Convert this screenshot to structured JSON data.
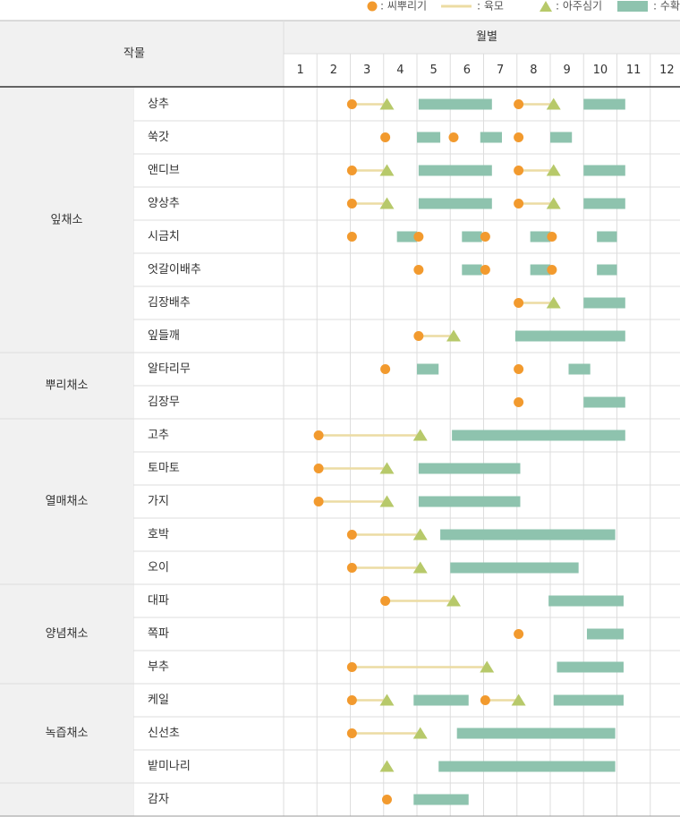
{
  "legend": [
    {
      "mark": "dot",
      "label": ": 씨뿌리기"
    },
    {
      "mark": "line",
      "label": ": 육모"
    },
    {
      "mark": "triangle",
      "label": ": 아주심기"
    },
    {
      "mark": "bar",
      "label": ": 수확"
    }
  ],
  "header": {
    "crop_col": "작물",
    "month_col": "월별"
  },
  "colors": {
    "sowing": "#f29a2e",
    "nursery": "#ecdca3",
    "planting": "#b7c96a",
    "harvest": "#8ec3ae",
    "header_bg": "#f1f1f1",
    "grid": "#dddddd"
  },
  "chart_data": {
    "type": "table",
    "months": [
      "1",
      "2",
      "3",
      "4",
      "5",
      "6",
      "7",
      "8",
      "9",
      "10",
      "11",
      "12"
    ],
    "groups": [
      {
        "name": "잎채소",
        "crops": [
          {
            "name": "상추",
            "sow": [
              3.05,
              8.05
            ],
            "nursery": [
              [
                3.05,
                4.1
              ],
              [
                8.05,
                9.1
              ]
            ],
            "plant": [
              4.1,
              9.1
            ],
            "harvest": [
              [
                5.05,
                7.25
              ],
              [
                10.0,
                11.25
              ]
            ]
          },
          {
            "name": "쑥갓",
            "sow": [
              4.05,
              6.1,
              8.05
            ],
            "nursery": [],
            "plant": [],
            "harvest": [
              [
                5.0,
                5.7
              ],
              [
                6.9,
                7.55
              ],
              [
                9.0,
                9.65
              ]
            ]
          },
          {
            "name": "앤디브",
            "sow": [
              3.05,
              8.05
            ],
            "nursery": [
              [
                3.05,
                4.1
              ],
              [
                8.05,
                9.1
              ]
            ],
            "plant": [
              4.1,
              9.1
            ],
            "harvest": [
              [
                5.05,
                7.25
              ],
              [
                10.0,
                11.25
              ]
            ]
          },
          {
            "name": "양상추",
            "sow": [
              3.05,
              8.05
            ],
            "nursery": [
              [
                3.05,
                4.1
              ],
              [
                8.05,
                9.1
              ]
            ],
            "plant": [
              4.1,
              9.1
            ],
            "harvest": [
              [
                5.05,
                7.25
              ],
              [
                10.0,
                11.25
              ]
            ]
          },
          {
            "name": "시금치",
            "sow": [
              3.05,
              5.05,
              7.05,
              9.05
            ],
            "nursery": [],
            "plant": [],
            "harvest": [
              [
                4.4,
                5.0
              ],
              [
                6.35,
                6.95
              ],
              [
                8.4,
                9.0
              ],
              [
                10.4,
                11.0
              ]
            ]
          },
          {
            "name": "엇갈이배추",
            "sow": [
              5.05,
              7.05,
              9.05
            ],
            "nursery": [],
            "plant": [],
            "harvest": [
              [
                6.35,
                6.95
              ],
              [
                8.4,
                9.0
              ],
              [
                10.4,
                11.0
              ]
            ]
          },
          {
            "name": "김장배추",
            "sow": [
              8.05
            ],
            "nursery": [
              [
                8.05,
                9.1
              ]
            ],
            "plant": [
              9.1
            ],
            "harvest": [
              [
                10.0,
                11.25
              ]
            ]
          },
          {
            "name": "잎들깨",
            "sow": [
              5.05
            ],
            "nursery": [
              [
                5.05,
                6.1
              ]
            ],
            "plant": [
              6.1
            ],
            "harvest": [
              [
                7.95,
                11.25
              ]
            ]
          }
        ]
      },
      {
        "name": "뿌리채소",
        "crops": [
          {
            "name": "알타리무",
            "sow": [
              4.05,
              8.05
            ],
            "nursery": [],
            "plant": [],
            "harvest": [
              [
                5.0,
                5.65
              ],
              [
                9.55,
                10.2
              ]
            ]
          },
          {
            "name": "김장무",
            "sow": [
              8.05
            ],
            "nursery": [],
            "plant": [],
            "harvest": [
              [
                10.0,
                11.25
              ]
            ]
          }
        ]
      },
      {
        "name": "열매채소",
        "crops": [
          {
            "name": "고추",
            "sow": [
              2.05
            ],
            "nursery": [
              [
                2.05,
                5.1
              ]
            ],
            "plant": [
              5.1
            ],
            "harvest": [
              [
                6.05,
                11.25
              ]
            ]
          },
          {
            "name": "토마토",
            "sow": [
              2.05
            ],
            "nursery": [
              [
                2.05,
                4.1
              ]
            ],
            "plant": [
              4.1
            ],
            "harvest": [
              [
                5.05,
                8.1
              ]
            ]
          },
          {
            "name": "가지",
            "sow": [
              2.05
            ],
            "nursery": [
              [
                2.05,
                4.1
              ]
            ],
            "plant": [
              4.1
            ],
            "harvest": [
              [
                5.05,
                8.1
              ]
            ]
          },
          {
            "name": "호박",
            "sow": [
              3.05
            ],
            "nursery": [
              [
                3.05,
                5.1
              ]
            ],
            "plant": [
              5.1
            ],
            "harvest": [
              [
                5.7,
                10.95
              ]
            ]
          },
          {
            "name": "오이",
            "sow": [
              3.05
            ],
            "nursery": [
              [
                3.05,
                5.1
              ]
            ],
            "plant": [
              5.1
            ],
            "harvest": [
              [
                6.0,
                9.85
              ]
            ]
          }
        ]
      },
      {
        "name": "양념채소",
        "crops": [
          {
            "name": "대파",
            "sow": [
              4.05
            ],
            "nursery": [
              [
                4.05,
                6.1
              ]
            ],
            "plant": [
              6.1
            ],
            "harvest": [
              [
                8.95,
                11.2
              ]
            ]
          },
          {
            "name": "쪽파",
            "sow": [
              8.05
            ],
            "nursery": [],
            "plant": [],
            "harvest": [
              [
                10.1,
                11.2
              ]
            ]
          },
          {
            "name": "부추",
            "sow": [
              3.05
            ],
            "nursery": [
              [
                3.05,
                7.1
              ]
            ],
            "plant": [
              7.1
            ],
            "harvest": [
              [
                9.2,
                11.2
              ]
            ]
          }
        ]
      },
      {
        "name": "녹즙채소",
        "crops": [
          {
            "name": "케일",
            "sow": [
              3.05,
              7.05
            ],
            "nursery": [
              [
                3.05,
                4.1
              ],
              [
                7.05,
                8.05
              ]
            ],
            "plant": [
              4.1,
              8.05
            ],
            "harvest": [
              [
                4.9,
                6.55
              ],
              [
                9.1,
                11.2
              ]
            ]
          },
          {
            "name": "신선초",
            "sow": [
              3.05
            ],
            "nursery": [
              [
                3.05,
                5.1
              ]
            ],
            "plant": [
              5.1
            ],
            "harvest": [
              [
                6.2,
                10.95
              ]
            ]
          },
          {
            "name": "밭미나리",
            "sow": [],
            "nursery": [],
            "plant": [
              4.1
            ],
            "harvest": [
              [
                5.65,
                10.95
              ]
            ]
          }
        ]
      },
      {
        "name": "",
        "crops": [
          {
            "name": "감자",
            "sow": [
              4.1
            ],
            "nursery": [],
            "plant": [],
            "harvest": [
              [
                4.9,
                6.55
              ]
            ]
          }
        ]
      }
    ]
  }
}
